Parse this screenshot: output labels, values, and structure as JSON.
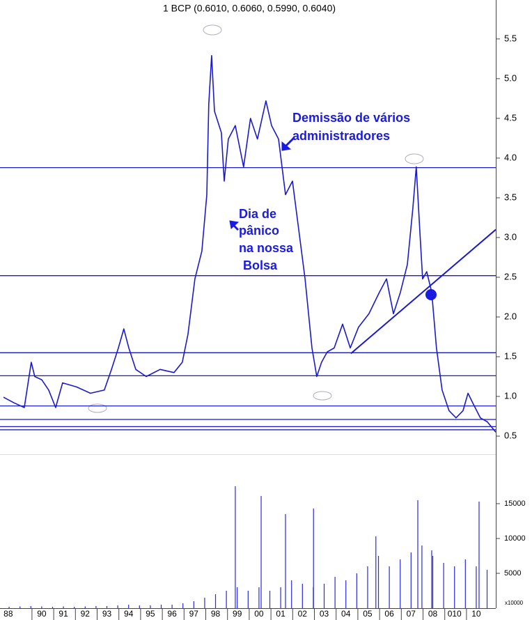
{
  "chart_data": [
    {
      "type": "line",
      "title": "1 BCP (0.6010, 0.6060, 0.5990, 0.6040)",
      "annotations": [
        [
          "Demissão de vários",
          "administradores"
        ],
        [
          "Dia de",
          "pânico",
          "na nossa",
          "Bolsa"
        ]
      ],
      "x": [
        1988.74,
        1989.22,
        1989.7,
        1990.02,
        1990.18,
        1990.5,
        1990.82,
        1991.14,
        1991.46,
        1992.1,
        1992.74,
        1993.38,
        1993.71,
        1994.03,
        1994.28,
        1994.51,
        1994.83,
        1995.31,
        1995.95,
        1996.59,
        1996.97,
        1997.23,
        1997.55,
        1997.87,
        1998.1,
        1998.19,
        1998.32,
        1998.45,
        1998.77,
        1998.9,
        1999.09,
        1999.41,
        1999.79,
        2000.11,
        2000.43,
        2000.82,
        2001.08,
        2001.4,
        2001.72,
        2002.04,
        2002.29,
        2002.62,
        2002.94,
        2003.16,
        2003.38,
        2003.64,
        2003.96,
        2004.35,
        2004.7,
        2005.08,
        2005.56,
        2006.04,
        2006.37,
        2006.69,
        2007.01,
        2007.33,
        2007.58,
        2007.74,
        2007.9,
        2008.03,
        2008.22,
        2008.45,
        2008.67,
        2008.93,
        2009.25,
        2009.57,
        2009.89,
        2010.12,
        2010.37,
        2010.69,
        2011.01,
        2011.4
      ],
      "series": [
        {
          "color": "#1a1acc",
          "values": [
            0.99,
            0.92,
            0.86,
            1.43,
            1.25,
            1.21,
            1.08,
            0.86,
            1.17,
            1.12,
            1.04,
            1.08,
            1.34,
            1.61,
            1.85,
            1.61,
            1.34,
            1.25,
            1.34,
            1.3,
            1.43,
            1.78,
            2.48,
            2.83,
            3.54,
            4.68,
            5.29,
            4.59,
            4.32,
            3.71,
            4.24,
            4.41,
            3.89,
            4.5,
            4.24,
            4.72,
            4.41,
            4.24,
            3.54,
            3.71,
            3.18,
            2.48,
            1.61,
            1.25,
            1.43,
            1.56,
            1.61,
            1.91,
            1.61,
            1.87,
            2.04,
            2.31,
            2.48,
            2.04,
            2.31,
            2.66,
            3.36,
            3.89,
            3.1,
            2.48,
            2.57,
            2.31,
            1.61,
            1.08,
            0.82,
            0.73,
            0.82,
            1.04,
            0.9,
            0.73,
            0.68,
            0.55
          ]
        }
      ],
      "levels": [
        3.88,
        2.52,
        1.55,
        1.26,
        0.88,
        0.71,
        0.62,
        0.58
      ],
      "trendline": {
        "x": [
          2004.73,
          2011.4
        ],
        "values": [
          1.54,
          3.1
        ]
      },
      "xlim": [
        1988.58,
        2011.4
      ],
      "ylim": [
        0.29,
        5.99
      ],
      "yticks": [
        {
          "value": 0.5,
          "label": "0.5"
        },
        {
          "value": 1.0,
          "label": "1.0"
        },
        1.5,
        {
          "value": 2.0,
          "label": "2.0"
        },
        2.5,
        {
          "value": 3.0,
          "label": "3.0"
        },
        3.5,
        {
          "value": 4.0,
          "label": "4.0"
        },
        4.5,
        {
          "value": 5.0,
          "label": "5.0"
        },
        5.5
      ]
    },
    {
      "type": "bar",
      "color": "#2a2ae0",
      "unit_label": "x10000",
      "x": [
        1989.0,
        1989.5,
        1990.0,
        1990.5,
        1991.0,
        1991.5,
        1992.0,
        1992.5,
        1993.0,
        1993.5,
        1994.0,
        1994.5,
        1995.0,
        1995.5,
        1996.0,
        1996.5,
        1997.0,
        1997.5,
        1998.0,
        1998.5,
        1999.0,
        1999.41,
        1999.5,
        2000.0,
        2000.5,
        2000.6,
        2001.0,
        2001.5,
        2001.72,
        2002.0,
        2002.5,
        2003.0,
        2003.01,
        2003.5,
        2004.0,
        2004.5,
        2005.0,
        2005.5,
        2005.88,
        2006.0,
        2006.5,
        2007.0,
        2007.5,
        2007.81,
        2008.0,
        2008.45,
        2008.5,
        2009.0,
        2009.5,
        2010.0,
        2010.5,
        2010.63,
        2011.0
      ],
      "values": [
        200,
        250,
        300,
        250,
        200,
        250,
        200,
        250,
        300,
        300,
        400,
        500,
        400,
        400,
        500,
        500,
        700,
        1000,
        1500,
        2000,
        2500,
        17500,
        3000,
        2500,
        3000,
        16100,
        2500,
        3000,
        13500,
        4000,
        3500,
        3000,
        14300,
        3500,
        4500,
        4000,
        5000,
        6000,
        10300,
        7500,
        6000,
        7000,
        8000,
        15500,
        9000,
        8300,
        7500,
        6500,
        6000,
        7000,
        6000,
        15300,
        5500
      ],
      "xlim": [
        1988.58,
        2011.4
      ],
      "ylim": [
        0,
        22000
      ],
      "yticks": [
        5000,
        10000,
        15000
      ],
      "xticks": [
        {
          "value": 1988.96,
          "label": "88"
        },
        {
          "value": 1990.5,
          "label": "90"
        },
        {
          "value": 1991.5,
          "label": "91"
        },
        {
          "value": 1992.5,
          "label": "92"
        },
        {
          "value": 1993.5,
          "label": "93"
        },
        {
          "value": 1994.5,
          "label": "94"
        },
        {
          "value": 1995.5,
          "label": "95"
        },
        {
          "value": 1996.5,
          "label": "96"
        },
        {
          "value": 1997.5,
          "label": "97"
        },
        {
          "value": 1998.5,
          "label": "98"
        },
        {
          "value": 1999.5,
          "label": "99"
        },
        {
          "value": 2000.5,
          "label": "00"
        },
        {
          "value": 2001.5,
          "label": "01"
        },
        {
          "value": 2002.5,
          "label": "02"
        },
        {
          "value": 2003.5,
          "label": "03"
        },
        {
          "value": 2004.5,
          "label": "04"
        },
        {
          "value": 2005.5,
          "label": "05"
        },
        {
          "value": 2006.5,
          "label": "06"
        },
        {
          "value": 2007.5,
          "label": "07"
        },
        {
          "value": 2008.5,
          "label": "08"
        },
        {
          "value": 2009.5,
          "label": "010"
        },
        {
          "value": 2010.5,
          "label": "10"
        }
      ]
    }
  ]
}
